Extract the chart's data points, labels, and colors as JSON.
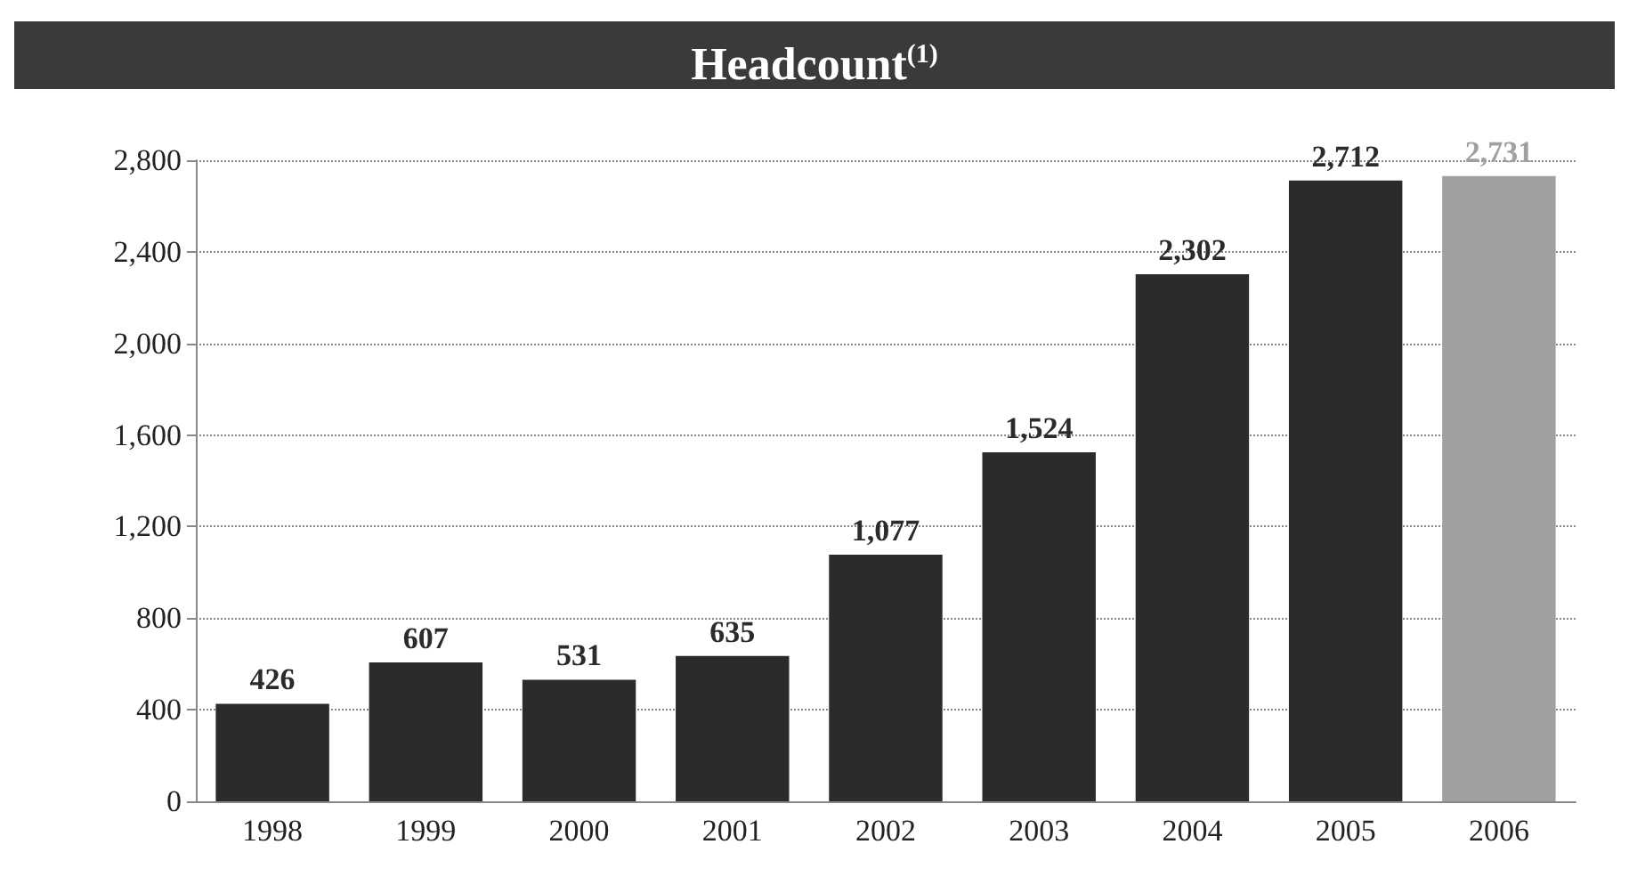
{
  "chart_data": {
    "type": "bar",
    "title": "Headcount$^{(1)}$",
    "categories": [
      "1998",
      "1999",
      "2000",
      "2001",
      "2002",
      "2003",
      "2004",
      "2005",
      "2006"
    ],
    "values": [
      426,
      607,
      531,
      635,
      1077,
      1524,
      2302,
      2712,
      2731
    ],
    "value_labels": [
      "426",
      "607",
      "531",
      "635",
      "1,077",
      "1,524",
      "2,302",
      "2,712",
      "2,731"
    ],
    "colors": [
      "#2b2b2b",
      "#2b2b2b",
      "#2b2b2b",
      "#2b2b2b",
      "#2b2b2b",
      "#2b2b2b",
      "#2b2b2b",
      "#2b2b2b",
      "#a0a0a0"
    ],
    "ylim": [
      0,
      2800
    ],
    "yticks": [
      0,
      400,
      800,
      {
        "value": 1200,
        "label": "1,200"
      },
      {
        "value": 1600,
        "label": "1,600"
      },
      {
        "value": 2000,
        "label": "2,000"
      },
      {
        "value": 2400,
        "label": "2,400"
      },
      {
        "value": 2800,
        "label": "2,800"
      }
    ],
    "grid": "y"
  }
}
